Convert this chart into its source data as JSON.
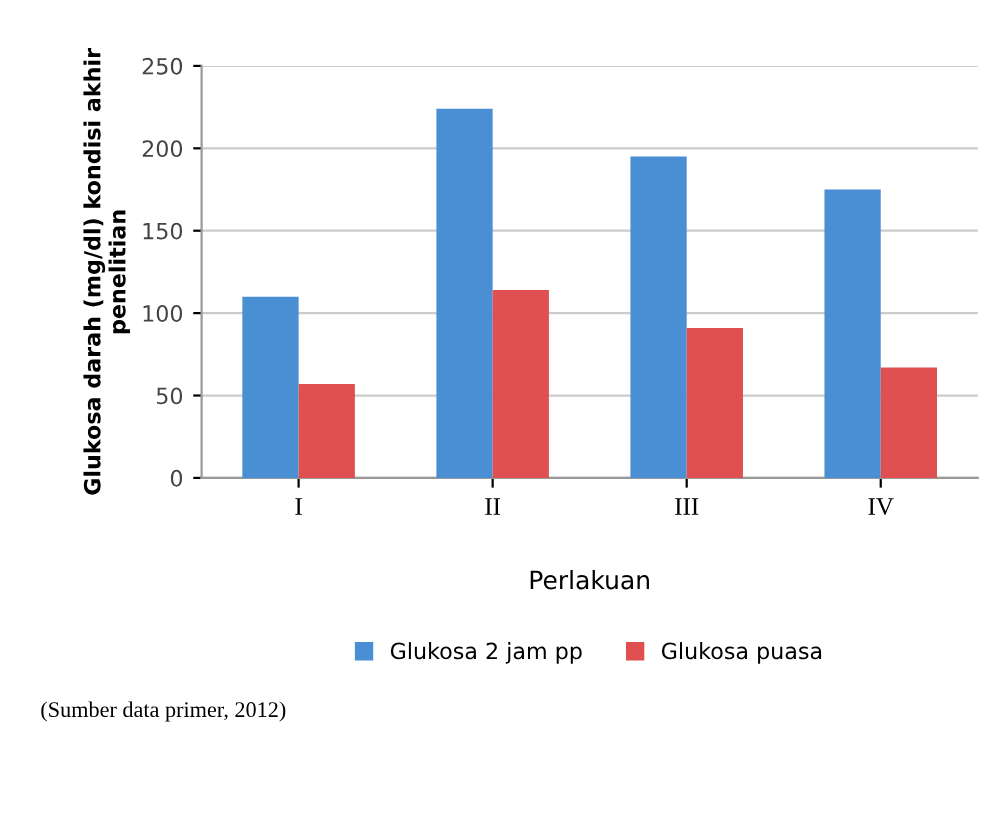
{
  "chart_data": {
    "type": "bar",
    "xlabel": "Perlakuan",
    "ylabel": "Glukosa darah (mg/dl) kondisi akhir\npenelitian",
    "categories": [
      "I",
      "II",
      "III",
      "IV"
    ],
    "series": [
      {
        "name": "Glukosa 2 jam pp",
        "color": "#4a8fd4",
        "values": [
          110,
          224,
          195,
          175
        ]
      },
      {
        "name": "Glukosa puasa",
        "color": "#e05050",
        "values": [
          57,
          114,
          91,
          67
        ]
      }
    ],
    "ylim": [
      0,
      250
    ],
    "yticks": [
      0,
      50,
      100,
      150,
      200,
      250
    ],
    "grid": "y",
    "legend": "bottom",
    "annotations": [
      "(Sumber data primer, 2012)"
    ]
  }
}
